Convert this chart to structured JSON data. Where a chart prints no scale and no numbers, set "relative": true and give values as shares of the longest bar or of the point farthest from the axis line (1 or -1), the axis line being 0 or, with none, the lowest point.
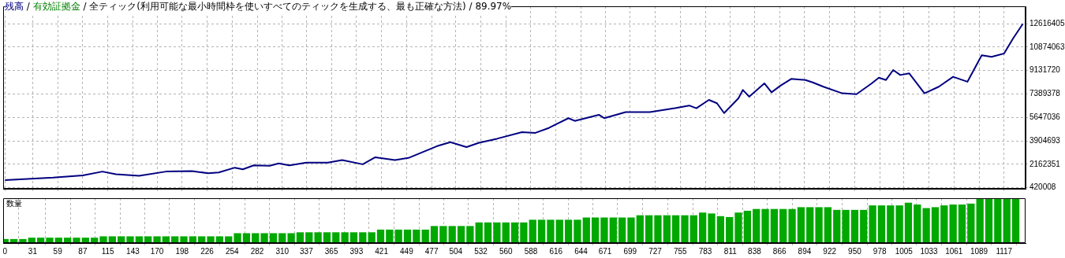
{
  "chart_data": [
    {
      "type": "line",
      "annotations": [
        "/"
      ],
      "subtitle": "/ 全ティック(利用可能な最小時間枠を使いすべてのティックを生成する、最も正確な方法) / 89.97%",
      "legend": "top left",
      "grid": true,
      "tick_labels": "y",
      "xlim": [
        -2,
        1141
      ],
      "xticks": [
        0,
        31,
        59,
        87,
        115,
        143,
        170,
        198,
        226,
        254,
        282,
        310,
        337,
        365,
        393,
        421,
        449,
        477,
        504,
        532,
        560,
        588,
        616,
        644,
        671,
        699,
        727,
        755,
        783,
        811,
        838,
        866,
        894,
        922,
        950,
        978,
        1005,
        1033,
        1061,
        1089,
        1117
      ],
      "ylim": [
        340000,
        13910000
      ],
      "yticks": [
        420008,
        2162351,
        3904693,
        5647036,
        7389378,
        9131720,
        10874063,
        12616405
      ],
      "x": [
        0,
        54,
        87,
        109,
        124,
        150,
        180,
        209,
        227,
        239,
        257,
        266,
        278,
        296,
        306,
        318,
        337,
        361,
        377,
        400,
        414,
        436,
        451,
        483,
        498,
        516,
        530,
        550,
        578,
        593,
        608,
        615,
        630,
        637,
        664,
        670,
        694,
        721,
        749,
        765,
        773,
        787,
        796,
        804,
        820,
        825,
        832,
        849,
        857,
        867,
        879,
        895,
        903,
        915,
        936,
        952,
        969,
        977,
        985,
        993,
        1001,
        1011,
        1028,
        1044,
        1060,
        1076,
        1092,
        1103,
        1117,
        1127,
        1138
      ],
      "series": [
        {
          "name": "残高",
          "color": "#000080",
          "values": [
            980000,
            1170000,
            1340000,
            1620000,
            1420000,
            1300000,
            1620000,
            1660000,
            1500000,
            1550000,
            1910000,
            1790000,
            2080000,
            2050000,
            2230000,
            2080000,
            2280000,
            2280000,
            2480000,
            2160000,
            2680000,
            2480000,
            2630000,
            3510000,
            3810000,
            3440000,
            3760000,
            4060000,
            4550000,
            4500000,
            4860000,
            5100000,
            5590000,
            5390000,
            5840000,
            5590000,
            6040000,
            6040000,
            6330000,
            6530000,
            6330000,
            6950000,
            6700000,
            5970000,
            7070000,
            7690000,
            7190000,
            8180000,
            7510000,
            8010000,
            8510000,
            8430000,
            8250000,
            7930000,
            7440000,
            7370000,
            8180000,
            8600000,
            8430000,
            9170000,
            8800000,
            8920000,
            7440000,
            7930000,
            8670000,
            8300000,
            10270000,
            10150000,
            10400000,
            11510000,
            12610000
          ]
        },
        {
          "name": "有効証拠金",
          "color": "#008000",
          "values": [
            null,
            null,
            null,
            null,
            null,
            null,
            null,
            null,
            null,
            null,
            null,
            null,
            null,
            null,
            null,
            null,
            null,
            null,
            null,
            null,
            null,
            null,
            null,
            null,
            null,
            null,
            null,
            null,
            null,
            null,
            null,
            null,
            null,
            null,
            null,
            null,
            null,
            null,
            null,
            null,
            null,
            null,
            null,
            null,
            null,
            null,
            null,
            null,
            null,
            null,
            null,
            null,
            null,
            null,
            null,
            null,
            null,
            null,
            null,
            null,
            null,
            null,
            null,
            null,
            null,
            null,
            null,
            null,
            null,
            null,
            null
          ]
        }
      ]
    },
    {
      "type": "bar",
      "title": "数量",
      "relative": true,
      "grid": "x",
      "tick_labels": "x",
      "color": "#00a800",
      "xlim": [
        -2,
        1141
      ],
      "xticks": [
        0,
        31,
        59,
        87,
        115,
        143,
        170,
        198,
        226,
        254,
        282,
        310,
        337,
        365,
        393,
        421,
        449,
        477,
        504,
        532,
        560,
        588,
        616,
        644,
        671,
        699,
        727,
        755,
        783,
        811,
        838,
        866,
        894,
        922,
        950,
        978,
        1005,
        1033,
        1061,
        1089,
        1117
      ],
      "x": [
        0,
        10,
        20,
        30,
        40,
        50,
        60,
        70,
        80,
        90,
        100,
        110,
        120,
        130,
        140,
        150,
        160,
        170,
        180,
        190,
        200,
        210,
        220,
        230,
        240,
        250,
        260,
        270,
        280,
        290,
        300,
        310,
        320,
        330,
        340,
        350,
        360,
        370,
        380,
        390,
        400,
        410,
        420,
        430,
        440,
        450,
        460,
        470,
        480,
        490,
        500,
        510,
        520,
        530,
        540,
        550,
        560,
        570,
        580,
        590,
        600,
        610,
        620,
        630,
        640,
        650,
        660,
        670,
        680,
        690,
        700,
        710,
        720,
        730,
        740,
        750,
        760,
        770,
        780,
        790,
        800,
        810,
        820,
        830,
        840,
        850,
        860,
        870,
        880,
        890,
        900,
        910,
        920,
        930,
        940,
        950,
        960,
        970,
        980,
        990,
        1000,
        1010,
        1020,
        1030,
        1040,
        1050,
        1060,
        1070,
        1080,
        1090,
        1100,
        1110,
        1120,
        1130
      ],
      "values": [
        0.09,
        0.09,
        0.09,
        0.12,
        0.12,
        0.12,
        0.12,
        0.12,
        0.12,
        0.12,
        0.12,
        0.15,
        0.15,
        0.15,
        0.15,
        0.15,
        0.15,
        0.15,
        0.15,
        0.15,
        0.15,
        0.15,
        0.15,
        0.15,
        0.15,
        0.15,
        0.22,
        0.22,
        0.22,
        0.22,
        0.22,
        0.22,
        0.22,
        0.24,
        0.24,
        0.24,
        0.24,
        0.24,
        0.24,
        0.24,
        0.24,
        0.24,
        0.3,
        0.3,
        0.3,
        0.3,
        0.3,
        0.3,
        0.38,
        0.38,
        0.38,
        0.38,
        0.38,
        0.46,
        0.46,
        0.46,
        0.46,
        0.46,
        0.46,
        0.52,
        0.52,
        0.52,
        0.52,
        0.52,
        0.52,
        0.57,
        0.57,
        0.57,
        0.57,
        0.57,
        0.57,
        0.62,
        0.62,
        0.62,
        0.62,
        0.62,
        0.62,
        0.62,
        0.68,
        0.66,
        0.6,
        0.58,
        0.68,
        0.72,
        0.76,
        0.76,
        0.76,
        0.76,
        0.76,
        0.8,
        0.8,
        0.8,
        0.8,
        0.74,
        0.74,
        0.74,
        0.74,
        0.84,
        0.84,
        0.84,
        0.84,
        0.9,
        0.86,
        0.78,
        0.8,
        0.84,
        0.86,
        0.86,
        0.88,
        1,
        1,
        1,
        1,
        1
      ]
    }
  ]
}
